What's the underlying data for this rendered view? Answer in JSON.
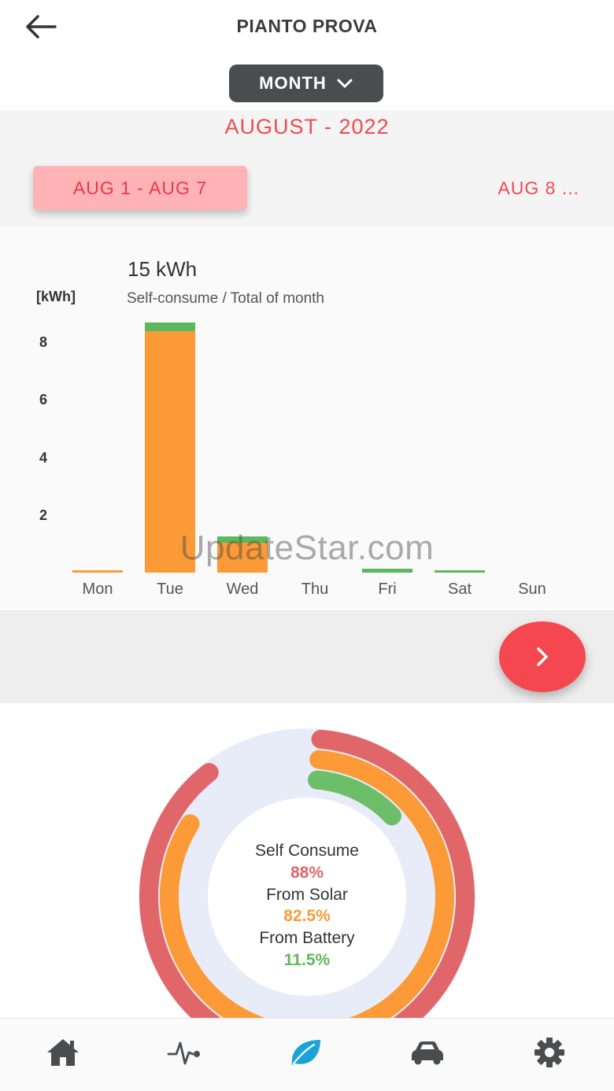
{
  "header": {
    "title": "PIANTO PROVA"
  },
  "period_select": {
    "selected": "MONTH"
  },
  "month": {
    "title": "AUGUST - 2022"
  },
  "weeks": {
    "current": "AUG 1 - AUG 7",
    "next": "AUG 8 ..."
  },
  "chart_data": {
    "type": "bar",
    "title": "15 kWh",
    "subtitle": "Self-consume / Total of month",
    "ylabel": "[kWh]",
    "yticks": [
      "2",
      "4",
      "6",
      "8"
    ],
    "ylim": [
      0,
      8.7
    ],
    "categories": [
      "Mon",
      "Tue",
      "Wed",
      "Thu",
      "Fri",
      "Sat",
      "Sun"
    ],
    "series": [
      {
        "values": [
          0.05,
          8.4,
          1.05,
          0,
          0,
          0,
          0
        ],
        "color": "#fb9a36"
      },
      {
        "values": [
          0,
          0.3,
          0.2,
          0,
          0.15,
          0.05,
          0
        ],
        "color": "#5cb85c"
      }
    ]
  },
  "summary": {
    "self_consume_label": "Self Consume",
    "self_consume_value": "88%",
    "from_solar_label": "From Solar",
    "from_solar_value": "82.5%",
    "from_battery_label": "From Battery",
    "from_battery_value": "11.5%",
    "self_consume_pct": 88,
    "from_solar_pct": 82.5,
    "from_battery_pct": 11.5,
    "colors": {
      "self": "#e06669",
      "solar": "#fb9a36",
      "battery": "#6cbf68",
      "track": "#e8ecf8"
    }
  },
  "bottom_nav": [
    "home-icon",
    "activity-icon",
    "leaf-icon",
    "car-icon",
    "gear-icon"
  ],
  "watermark": "UpdateStar.com"
}
